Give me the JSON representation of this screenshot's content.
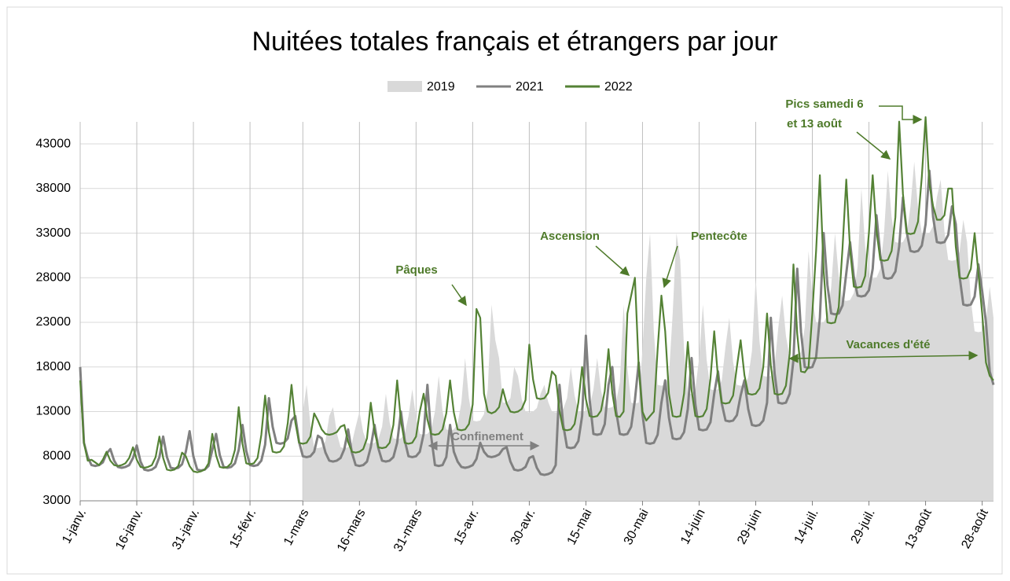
{
  "chart_data": {
    "type": "line",
    "title": "Nuitées totales français et étrangers par jour",
    "legend": "top",
    "grid": true,
    "ylim": [
      3000,
      46000
    ],
    "yticks": [
      3000,
      8000,
      13000,
      18000,
      23000,
      28000,
      33000,
      38000,
      43000
    ],
    "categories": [
      "1-janv.",
      null,
      null,
      null,
      null,
      null,
      null,
      null,
      null,
      null,
      null,
      null,
      null,
      null,
      null,
      "16-janv.",
      null,
      null,
      null,
      null,
      null,
      null,
      null,
      null,
      null,
      null,
      null,
      null,
      null,
      null,
      "31-janv.",
      null,
      null,
      null,
      null,
      null,
      null,
      null,
      null,
      null,
      null,
      null,
      null,
      null,
      null,
      "15-févr.",
      null,
      null,
      null,
      null,
      null,
      null,
      null,
      null,
      null,
      null,
      null,
      null,
      null,
      "1-mars",
      null,
      null,
      null,
      null,
      null,
      null,
      null,
      null,
      null,
      null,
      null,
      null,
      null,
      null,
      "16-mars",
      null,
      null,
      null,
      null,
      null,
      null,
      null,
      null,
      null,
      null,
      null,
      null,
      null,
      null,
      "31-mars",
      null,
      null,
      null,
      null,
      null,
      null,
      null,
      null,
      null,
      null,
      null,
      null,
      null,
      null,
      "15-avr.",
      null,
      null,
      null,
      null,
      null,
      null,
      null,
      null,
      null,
      null,
      null,
      null,
      null,
      null,
      "30-avr.",
      null,
      null,
      null,
      null,
      null,
      null,
      null,
      null,
      null,
      null,
      null,
      null,
      null,
      null,
      "15-mai",
      null,
      null,
      null,
      null,
      null,
      null,
      null,
      null,
      null,
      null,
      null,
      null,
      null,
      null,
      "30-mai",
      null,
      null,
      null,
      null,
      null,
      null,
      null,
      null,
      null,
      null,
      null,
      null,
      null,
      null,
      "14-juin",
      null,
      null,
      null,
      null,
      null,
      null,
      null,
      null,
      null,
      null,
      null,
      null,
      null,
      null,
      "29-juin",
      null,
      null,
      null,
      null,
      null,
      null,
      null,
      null,
      null,
      null,
      null,
      null,
      null,
      null,
      "14-juil.",
      null,
      null,
      null,
      null,
      null,
      null,
      null,
      null,
      null,
      null,
      null,
      null,
      null,
      null,
      "29-juil.",
      null,
      null,
      null,
      null,
      null,
      null,
      null,
      null,
      null,
      null,
      null,
      null,
      null,
      null,
      "13-août",
      null,
      null,
      null,
      null,
      null,
      null,
      null,
      null,
      null,
      null,
      null,
      null,
      null,
      null,
      "28-août",
      null,
      null,
      null
    ],
    "series": [
      {
        "name": "2019",
        "style": "area",
        "color": "#d9d9d9",
        "values": [
          null,
          null,
          null,
          null,
          null,
          null,
          null,
          null,
          null,
          null,
          null,
          null,
          null,
          null,
          null,
          null,
          null,
          null,
          null,
          null,
          null,
          null,
          null,
          null,
          null,
          null,
          null,
          null,
          null,
          null,
          null,
          null,
          null,
          null,
          null,
          null,
          null,
          null,
          null,
          null,
          null,
          null,
          null,
          null,
          null,
          null,
          null,
          null,
          null,
          null,
          null,
          null,
          null,
          null,
          null,
          null,
          null,
          null,
          null,
          13000,
          16000,
          11500,
          9000,
          8900,
          9000,
          9700,
          12500,
          13500,
          10600,
          9000,
          8900,
          9000,
          9500,
          11300,
          13000,
          10700,
          9500,
          9400,
          9500,
          9900,
          11300,
          15000,
          11800,
          10000,
          9900,
          10000,
          10500,
          12500,
          15500,
          12300,
          10500,
          10400,
          10500,
          11000,
          13000,
          17000,
          13100,
          11000,
          10900,
          11000,
          11600,
          14000,
          19000,
          14500,
          12000,
          11900,
          12000,
          12700,
          15500,
          25000,
          21000,
          19000,
          14000,
          14000,
          14500,
          18000,
          17000,
          14400,
          13000,
          12900,
          13000,
          13400,
          15000,
          16000,
          14100,
          13000,
          12900,
          13000,
          13300,
          14500,
          18000,
          14800,
          13000,
          12900,
          13000,
          13500,
          15500,
          19000,
          15400,
          13500,
          13400,
          13500,
          14100,
          16300,
          25000,
          17900,
          14000,
          13900,
          14000,
          20000,
          28000,
          33000,
          22000,
          16000,
          15900,
          16000,
          17000,
          24000,
          33000,
          30000,
          20000,
          15000,
          15000,
          15500,
          19000,
          25000,
          18800,
          15500,
          15400,
          15500,
          16500,
          20300,
          23500,
          18600,
          16000,
          15900,
          16000,
          16800,
          19800,
          28000,
          20900,
          17000,
          16900,
          17000,
          18100,
          22500,
          26000,
          21500,
          19000,
          18900,
          19000,
          19700,
          22500,
          31000,
          25800,
          23000,
          22900,
          23000,
          23800,
          27000,
          33000,
          28100,
          25500,
          25400,
          25500,
          26300,
          29300,
          38000,
          31500,
          28000,
          27900,
          28000,
          29000,
          33000,
          40000,
          34800,
          32000,
          31900,
          32000,
          32800,
          36000,
          41000,
          35800,
          33000,
          32900,
          33000,
          33800,
          37000,
          39000,
          33200,
          30000,
          29900,
          30000,
          30900,
          34500,
          32000,
          25500,
          22000,
          21900,
          22000,
          23000,
          27000,
          23500
        ]
      },
      {
        "name": "2021",
        "style": "line",
        "color": "#808080",
        "values": [
          18000,
          9500,
          7900,
          7000,
          6900,
          7000,
          7300,
          8300,
          8800,
          7500,
          6800,
          6700,
          6800,
          7000,
          7800,
          9200,
          7400,
          6500,
          6400,
          6500,
          6800,
          7900,
          10200,
          7900,
          6700,
          6600,
          6700,
          7100,
          8500,
          10800,
          8000,
          6500,
          6400,
          6500,
          6900,
          8700,
          10500,
          8100,
          6800,
          6700,
          6800,
          7200,
          8700,
          11500,
          8600,
          7000,
          6900,
          7000,
          7500,
          9300,
          14500,
          11300,
          9500,
          9400,
          9500,
          10000,
          12000,
          12500,
          9600,
          8000,
          7900,
          8000,
          8500,
          10300,
          10000,
          8400,
          7500,
          7400,
          7500,
          7800,
          8800,
          11000,
          8400,
          7000,
          6900,
          7000,
          7400,
          9000,
          11500,
          8900,
          7500,
          7400,
          7500,
          7900,
          9500,
          13000,
          9800,
          8000,
          7900,
          8000,
          8500,
          10500,
          16000,
          10200,
          7000,
          6900,
          7000,
          7900,
          11500,
          8500,
          7400,
          6800,
          6700,
          6800,
          7000,
          7700,
          9500,
          8500,
          8000,
          7900,
          8000,
          8200,
          8800,
          9000,
          7400,
          6500,
          6400,
          6500,
          6800,
          7800,
          8000,
          6700,
          6000,
          5900,
          6000,
          6200,
          7000,
          16000,
          11500,
          9000,
          8900,
          9000,
          9700,
          12500,
          21500,
          14300,
          10500,
          10400,
          10500,
          11600,
          16000,
          18000,
          13100,
          10500,
          10400,
          10500,
          11300,
          14300,
          18500,
          12700,
          9500,
          9400,
          9500,
          10400,
          14000,
          16500,
          12300,
          10000,
          9900,
          10000,
          10700,
          13300,
          19000,
          13800,
          11000,
          10900,
          11000,
          11800,
          15000,
          17500,
          13900,
          12000,
          11900,
          12000,
          12600,
          14800,
          16500,
          13300,
          11500,
          11400,
          11500,
          12000,
          14000,
          23500,
          17300,
          14000,
          13900,
          14000,
          15000,
          18800,
          29000,
          21900,
          18000,
          17900,
          18000,
          19100,
          23500,
          33000,
          27200,
          24000,
          23900,
          24000,
          24900,
          28500,
          32000,
          28100,
          26000,
          25900,
          26000,
          26600,
          29000,
          35000,
          30500,
          28000,
          27900,
          28000,
          28700,
          31500,
          37000,
          33100,
          31000,
          30900,
          31000,
          31600,
          34000,
          40000,
          34800,
          32000,
          31900,
          32000,
          32800,
          36000,
          34000,
          28200,
          25000,
          24900,
          25000,
          25900,
          29500,
          26500,
          23000,
          17500,
          16000
        ]
      },
      {
        "name": "2022",
        "style": "line",
        "color": "#548235",
        "values": [
          16500,
          9500,
          7500,
          7600,
          7300,
          7000,
          7600,
          8500,
          7500,
          7000,
          6900,
          7000,
          7200,
          7800,
          9000,
          7600,
          6800,
          6700,
          6800,
          7000,
          7900,
          10200,
          7800,
          6500,
          6400,
          6500,
          6900,
          8400,
          8000,
          6900,
          6300,
          6200,
          6300,
          6500,
          7200,
          10500,
          8100,
          6800,
          6700,
          6800,
          7200,
          8700,
          13500,
          9400,
          7200,
          7100,
          7200,
          7800,
          10400,
          14800,
          10700,
          8500,
          8400,
          8500,
          9100,
          11700,
          16000,
          11800,
          9500,
          9400,
          9500,
          10200,
          12800,
          12000,
          11000,
          10500,
          10400,
          10500,
          10700,
          11300,
          11500,
          9600,
          8500,
          8400,
          8500,
          8800,
          10000,
          14000,
          10800,
          9000,
          8900,
          9000,
          9500,
          11500,
          16500,
          12000,
          9500,
          9400,
          9500,
          10200,
          13000,
          15000,
          12100,
          10500,
          10400,
          10500,
          11000,
          12800,
          16500,
          12900,
          11000,
          10900,
          11000,
          11600,
          13800,
          24500,
          23500,
          15000,
          13000,
          12800,
          13000,
          13500,
          15500,
          13900,
          13000,
          12900,
          13000,
          13300,
          14300,
          20500,
          16600,
          14500,
          14400,
          14500,
          15100,
          17500,
          17000,
          13100,
          11000,
          10900,
          11000,
          11600,
          14000,
          18000,
          14400,
          12500,
          12400,
          12500,
          13100,
          15300,
          20000,
          15100,
          12500,
          12400,
          13000,
          24000,
          26000,
          28000,
          18000,
          13000,
          12000,
          12500,
          13000,
          20000,
          26000,
          22000,
          15000,
          12500,
          12400,
          12500,
          15000,
          20800,
          15400,
          12500,
          12400,
          12500,
          13300,
          16700,
          22000,
          16800,
          14000,
          13900,
          14000,
          14800,
          18000,
          21000,
          17100,
          15000,
          14900,
          15000,
          15600,
          18000,
          24000,
          18200,
          15000,
          14900,
          15000,
          15900,
          19500,
          29500,
          21700,
          17500,
          17400,
          18000,
          24000,
          31000,
          39500,
          28800,
          23000,
          22900,
          23000,
          24700,
          31300,
          39000,
          31200,
          27000,
          26900,
          27000,
          28200,
          33000,
          39500,
          33300,
          30000,
          29900,
          30000,
          31000,
          34800,
          45500,
          37400,
          33000,
          32900,
          33000,
          34300,
          39300,
          46000,
          38500,
          36000,
          34500,
          34500,
          35000,
          38000,
          38000,
          31500,
          28000,
          27900,
          28000,
          29000,
          33000,
          28500,
          24000,
          18500,
          17000,
          16500
        ]
      }
    ],
    "annotations": [
      "Pâques",
      "Ascension",
      "Pentecôte",
      "Pics samedi 6",
      "et 13 août",
      "Vacances d'été",
      "Confinement"
    ]
  }
}
